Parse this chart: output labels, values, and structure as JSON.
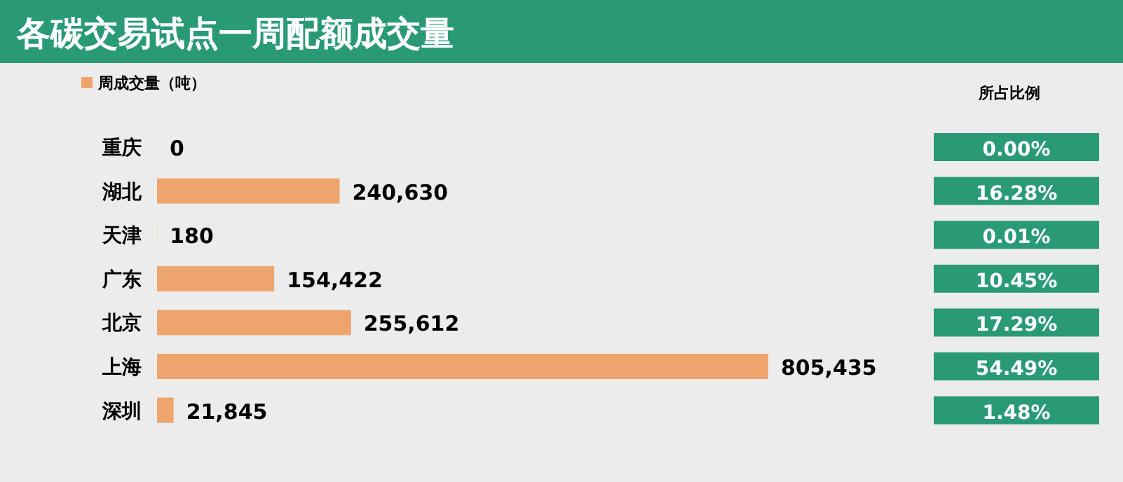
{
  "chart_data": [
    {
      "type": "bar",
      "title": "各碳交易试点一周配额成交量",
      "orientation": "horizontal",
      "categories": [
        "重庆",
        "湖北",
        "天津",
        "广东",
        "北京",
        "上海",
        "深圳"
      ],
      "series": [
        {
          "name": "周成交量（吨）",
          "color": "#eea56c",
          "values": [
            0,
            240630,
            180,
            154422,
            255612,
            805435,
            21845
          ],
          "value_labels": [
            "0",
            "240,630",
            "180",
            "154,422",
            "255,612",
            "805,435",
            "21,845"
          ]
        }
      ],
      "legend": "top left"
    },
    {
      "type": "other",
      "title": "所占比例",
      "color": "#2a9a76",
      "annotations": [
        "0.00%",
        "16.28%",
        "0.01%",
        "10.45%",
        "17.29%",
        "54.49%",
        "1.48%"
      ]
    }
  ]
}
